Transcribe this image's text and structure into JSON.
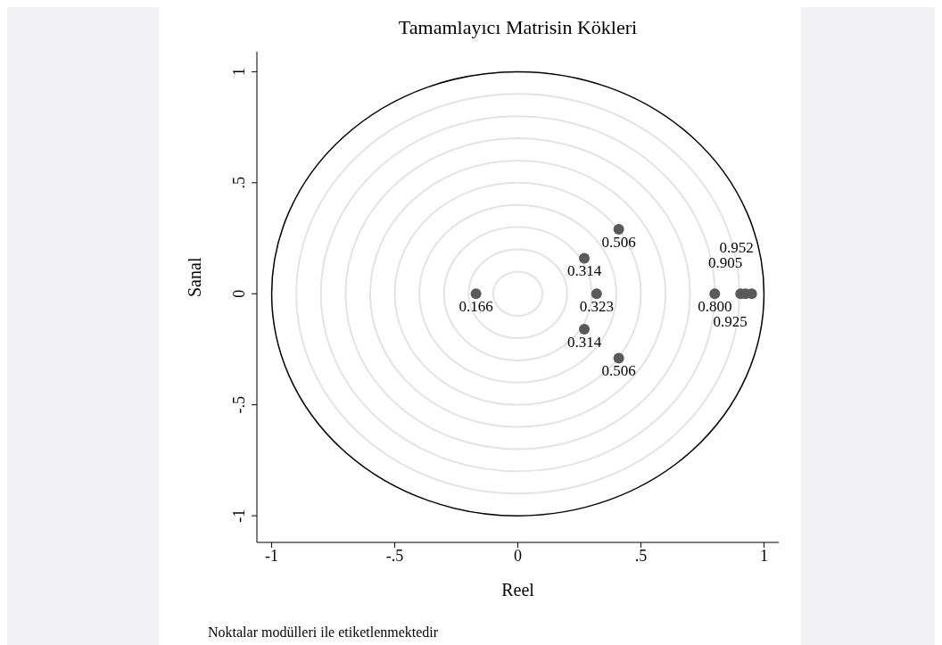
{
  "chart_data": {
    "type": "scatter",
    "title": "Tamamlayıcı Matrisin Kökleri",
    "xlabel": "Reel",
    "ylabel": "Sanal",
    "annotations": [
      "Noktalar modülleri ile etiketlenmektedir",
      {
        "text": "0.166",
        "x": -0.17,
        "y": 0
      },
      {
        "text": "0.314",
        "x": 0.27,
        "y": 0.16
      },
      {
        "text": "0.314",
        "x": 0.27,
        "y": -0.16
      },
      {
        "text": "0.323",
        "x": 0.32,
        "y": 0
      },
      {
        "text": "0.506",
        "x": 0.41,
        "y": 0.29
      },
      {
        "text": "0.506",
        "x": 0.41,
        "y": -0.29
      },
      {
        "text": "0.800",
        "x": 0.8,
        "y": 0
      },
      {
        "text": "0.905",
        "x": 0.905,
        "y": 0
      },
      {
        "text": "0.925",
        "x": 0.925,
        "y": 0
      },
      {
        "text": "0.952",
        "x": 0.95,
        "y": 0
      }
    ],
    "xlim": [
      -1.06,
      1.06
    ],
    "ylim": [
      -1.12,
      1.09
    ],
    "xticks": [
      {
        "value": -1,
        "label": "-1"
      },
      {
        "value": -0.5,
        "label": "-.5"
      },
      0,
      {
        "value": 0.5,
        "label": ".5"
      },
      1
    ],
    "yticks": [
      {
        "value": -1,
        "label": "-1"
      },
      {
        "value": -0.5,
        "label": "-.5"
      },
      0,
      {
        "value": 0.5,
        "label": ".5"
      },
      1
    ],
    "series": [
      {
        "color": "#5a5a5a",
        "marker": "circle",
        "x": [
          -0.17,
          0.27,
          0.27,
          0.32,
          0.41,
          0.41,
          0.8,
          0.905,
          0.925,
          0.95
        ],
        "values": [
          0,
          0.16,
          -0.16,
          0,
          0.29,
          -0.29,
          0,
          0,
          0,
          0
        ]
      }
    ]
  }
}
